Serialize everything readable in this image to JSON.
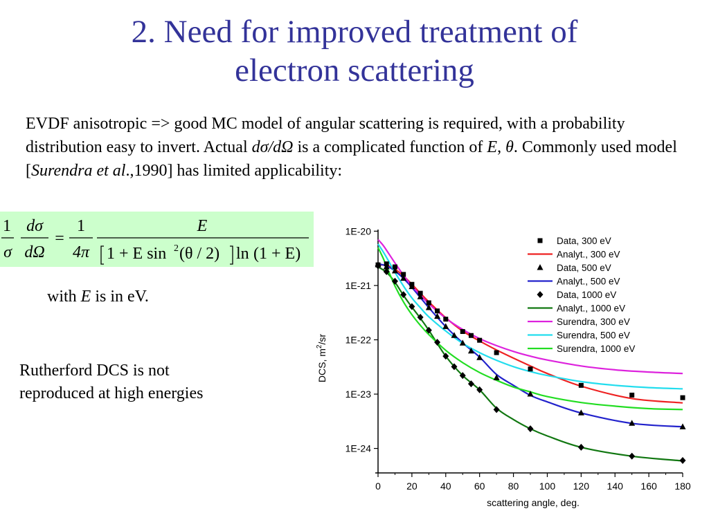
{
  "slide": {
    "title_line1": "2. Need for improved treatment of",
    "title_line2": "electron scattering",
    "intro": {
      "p1": "EVDF anisotropic => good MC model of angular scattering is required, with a probability distribution easy to invert. Actual ",
      "p2": "dσ/dΩ",
      "p3": " is a complicated function of  ",
      "p4": "E",
      "p5": ", ",
      "p6": "θ",
      "p7": ". Commonly used model [",
      "p8": "Surendra et al",
      "p9": ".,1990] has limited applicability:"
    },
    "formula": {
      "lhs_num1": "1",
      "lhs_den1": "σ",
      "lhs_num2": "dσ",
      "lhs_den2": "dΩ",
      "equals": "=",
      "rhs_num1": "1",
      "rhs_den1": "4π",
      "rhs_num2": "E",
      "den_part1": "1 + E sin",
      "den_sup": "2",
      "den_part2": "(θ / 2)",
      "den_part3": "ln",
      "den_part4": "(1 + E)"
    },
    "with_e": {
      "p1": "with ",
      "p2": "E",
      "p3": " is in eV."
    },
    "rutherford_line1": "Rutherford DCS is not",
    "rutherford_line2": "reproduced at high energies",
    "colors": {
      "title": "#333399",
      "formula_bg": "#ccffcc"
    }
  },
  "chart_data": {
    "type": "scatter",
    "xlabel": "scattering angle, deg.",
    "ylabel": "DCS, m²/sr",
    "ylabel_base": "DCS, m",
    "ylabel_sup": "2",
    "ylabel_tail": "/sr",
    "xlim": [
      0,
      180
    ],
    "ylim_log10": [
      -24.4,
      -19.97
    ],
    "y_scale": "log",
    "x_ticks": [
      "0",
      "20",
      "40",
      "60",
      "80",
      "100",
      "120",
      "140",
      "160",
      "180"
    ],
    "y_ticks": [
      "1E-20",
      "1E-21",
      "1E-22",
      "1E-23",
      "1E-24"
    ],
    "legend_position": "top-right",
    "series": [
      {
        "name": "Data, 300 eV",
        "kind": "points",
        "marker": "square",
        "color": "#000000",
        "x": [
          0,
          5,
          10,
          15,
          20,
          25,
          30,
          35,
          40,
          50,
          55,
          60,
          70,
          90,
          120,
          150,
          180
        ],
        "y": [
          2.4e-21,
          2.5e-21,
          2.2e-21,
          1.6e-21,
          1.05e-21,
          7.2e-22,
          4.8e-22,
          3.4e-22,
          2.4e-22,
          1.42e-22,
          1.2e-22,
          9.8e-23,
          5.8e-23,
          2.9e-23,
          1.45e-23,
          9.6e-24,
          8.6e-24
        ]
      },
      {
        "name": "Analyt., 300 eV",
        "kind": "line",
        "color": "#ee2222",
        "x": [
          0,
          5,
          10,
          15,
          20,
          25,
          30,
          40,
          50,
          60,
          70,
          80,
          90,
          100,
          120,
          150,
          180
        ],
        "y": [
          2.4e-21,
          2.35e-21,
          2e-21,
          1.5e-21,
          1.05e-21,
          7.2e-22,
          5e-22,
          2.55e-22,
          1.45e-22,
          9.5e-23,
          6.5e-23,
          4.6e-23,
          3.3e-23,
          2.4e-23,
          1.4e-23,
          8.3e-24,
          6.9e-24
        ]
      },
      {
        "name": "Data, 500 eV",
        "kind": "points",
        "marker": "triangle",
        "color": "#000000",
        "x": [
          0,
          5,
          10,
          15,
          20,
          25,
          30,
          35,
          40,
          45,
          50,
          55,
          60,
          70,
          90,
          120,
          150,
          180
        ],
        "y": [
          2.4e-21,
          2.2e-21,
          1.85e-21,
          1.35e-21,
          9.5e-22,
          6.2e-22,
          3.9e-22,
          2.7e-22,
          1.75e-22,
          1.2e-22,
          8.7e-23,
          6.2e-23,
          4.7e-23,
          2e-23,
          1e-23,
          4.5e-24,
          2.9e-24,
          2.5e-24
        ]
      },
      {
        "name": "Analyt., 500 eV",
        "kind": "line",
        "color": "#2222cc",
        "x": [
          0,
          5,
          10,
          15,
          20,
          25,
          30,
          40,
          50,
          60,
          70,
          80,
          90,
          100,
          120,
          150,
          180
        ],
        "y": [
          2.5e-21,
          2.3e-21,
          1.85e-21,
          1.35e-21,
          9.2e-22,
          6e-22,
          3.9e-22,
          1.75e-22,
          8.8e-23,
          4.8e-23,
          2.3e-23,
          1.45e-23,
          9.5e-24,
          7.2e-24,
          4.5e-24,
          2.9e-24,
          2.5e-24
        ]
      },
      {
        "name": "Data, 1000 eV",
        "kind": "points",
        "marker": "diamond",
        "color": "#000000",
        "x": [
          0,
          5,
          10,
          15,
          20,
          25,
          30,
          35,
          40,
          45,
          50,
          55,
          60,
          70,
          90,
          120,
          150,
          180
        ],
        "y": [
          2.3e-21,
          1.8e-21,
          1.2e-21,
          6.8e-22,
          4.1e-22,
          2.6e-22,
          1.5e-22,
          9e-23,
          5e-23,
          3.2e-23,
          2.2e-23,
          1.55e-23,
          1.2e-23,
          5.2e-24,
          2.3e-24,
          1.05e-24,
          7.2e-25,
          6e-25
        ]
      },
      {
        "name": "Analyt., 1000 eV",
        "kind": "line",
        "color": "#117711",
        "x": [
          0,
          5,
          10,
          15,
          20,
          25,
          30,
          40,
          50,
          60,
          70,
          80,
          90,
          100,
          120,
          150,
          180
        ],
        "y": [
          2.2e-21,
          1.75e-21,
          1.15e-21,
          6.6e-22,
          4e-22,
          2.5e-22,
          1.5e-22,
          5e-23,
          2.2e-23,
          1.2e-23,
          5.5e-24,
          3.4e-24,
          2.3e-24,
          1.7e-24,
          1.05e-24,
          7.2e-25,
          5.9e-25
        ]
      },
      {
        "name": "Surendra, 300 eV",
        "kind": "line",
        "color": "#dd22dd",
        "x": [
          0,
          3,
          6,
          10,
          15,
          20,
          25,
          30,
          40,
          50,
          60,
          70,
          80,
          90,
          100,
          120,
          140,
          160,
          180
        ],
        "y": [
          7e-21,
          5.5e-21,
          4e-21,
          2.6e-21,
          1.55e-21,
          9.8e-22,
          6.7e-22,
          4.6e-22,
          2.5e-22,
          1.55e-22,
          1.05e-22,
          7.8e-23,
          6.1e-23,
          5e-23,
          4.25e-23,
          3.3e-23,
          2.8e-23,
          2.55e-23,
          2.4e-23
        ]
      },
      {
        "name": "Surendra, 500 eV",
        "kind": "line",
        "color": "#22ddee",
        "x": [
          0,
          3,
          6,
          10,
          15,
          20,
          25,
          30,
          40,
          50,
          60,
          70,
          80,
          90,
          100,
          120,
          140,
          160,
          180
        ],
        "y": [
          5.8e-21,
          4.2e-21,
          2.9e-21,
          1.75e-21,
          9.8e-22,
          5.9e-22,
          3.9e-22,
          2.65e-22,
          1.45e-22,
          8.6e-23,
          5.8e-23,
          4.2e-23,
          3.2e-23,
          2.6e-23,
          2.2e-23,
          1.7e-23,
          1.45e-23,
          1.32e-23,
          1.25e-23
        ]
      },
      {
        "name": "Surendra, 1000 eV",
        "kind": "line",
        "color": "#22dd22",
        "x": [
          0,
          3,
          6,
          10,
          15,
          20,
          25,
          30,
          40,
          50,
          60,
          70,
          80,
          90,
          100,
          120,
          140,
          160,
          180
        ],
        "y": [
          5e-21,
          3.2e-21,
          1.9e-21,
          9.8e-22,
          5e-22,
          2.9e-22,
          1.85e-22,
          1.25e-22,
          6.4e-23,
          3.8e-23,
          2.5e-23,
          1.8e-23,
          1.35e-23,
          1.1e-23,
          9e-24,
          7e-24,
          6e-24,
          5.4e-24,
          5.2e-24
        ]
      }
    ]
  }
}
